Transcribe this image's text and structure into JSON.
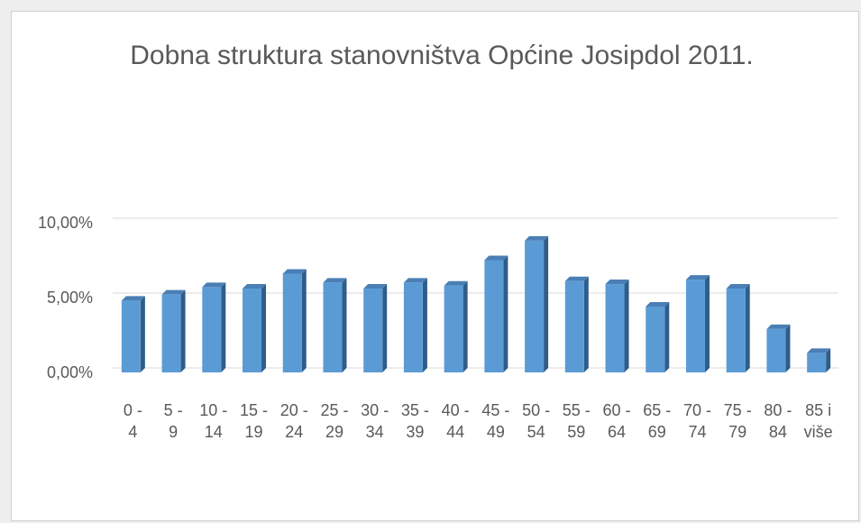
{
  "chart_data": {
    "type": "bar",
    "title": "Dobna struktura stanovništva Općine Josipdol 2011.",
    "categories": [
      "0 - 4",
      "5 - 9",
      "10 - 14",
      "15 - 19",
      "20 - 24",
      "25 - 29",
      "30 - 34",
      "35 - 39",
      "40 - 44",
      "45 - 49",
      "50 - 54",
      "55 - 59",
      "60 - 64",
      "65 - 69",
      "70 - 74",
      "75 - 79",
      "80 - 84",
      "85 i više"
    ],
    "values": [
      4.8,
      5.2,
      5.7,
      5.6,
      6.6,
      6.0,
      5.6,
      6.0,
      5.8,
      7.5,
      8.8,
      6.1,
      5.9,
      4.4,
      6.2,
      5.6,
      2.9,
      1.3
    ],
    "color": "#5b9bd5",
    "ylim": [
      0,
      10
    ],
    "yticks": [
      {
        "value": 0,
        "label": "0,00%"
      },
      {
        "value": 5,
        "label": "5,00%"
      },
      {
        "value": 10,
        "label": "10,00%"
      }
    ],
    "grid": true
  }
}
